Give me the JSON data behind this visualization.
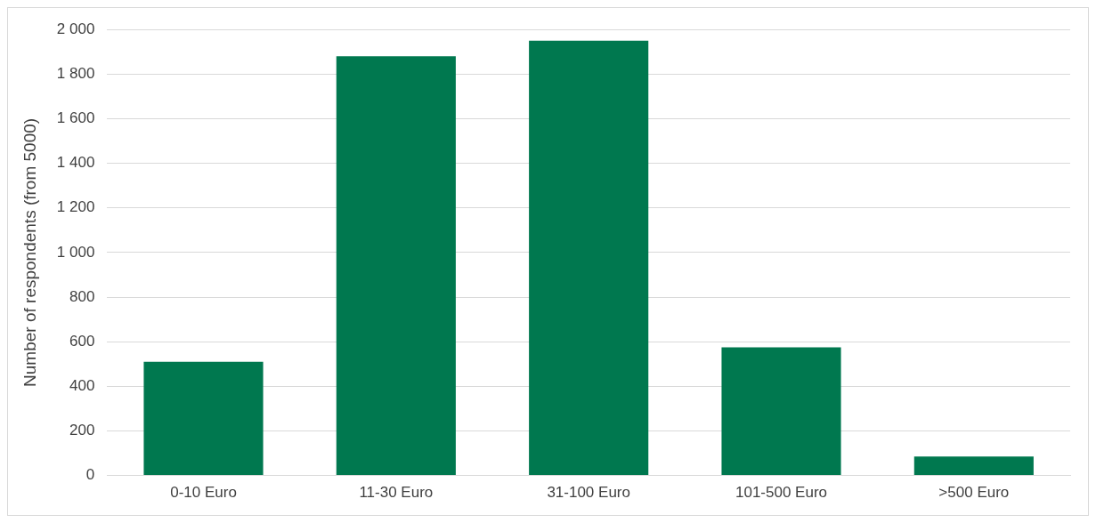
{
  "chart_data": {
    "type": "bar",
    "ylabel": "Number of respondents (from 5000)",
    "categories": [
      "0-10 Euro",
      "11-30 Euro",
      "31-100 Euro",
      "101-500 Euro",
      ">500 Euro"
    ],
    "values": [
      510,
      1880,
      1950,
      575,
      85
    ],
    "color": "#00784f",
    "ylim": [
      0,
      2000
    ],
    "yticks": [
      0,
      200,
      400,
      600,
      800,
      {
        "value": 1000,
        "label": "1 000"
      },
      {
        "value": 1200,
        "label": "1 200"
      },
      {
        "value": 1400,
        "label": "1 400"
      },
      {
        "value": 1600,
        "label": "1 600"
      },
      {
        "value": 1800,
        "label": "1 800"
      },
      {
        "value": 2000,
        "label": "2 000"
      }
    ],
    "grid": "y",
    "legend": false
  }
}
